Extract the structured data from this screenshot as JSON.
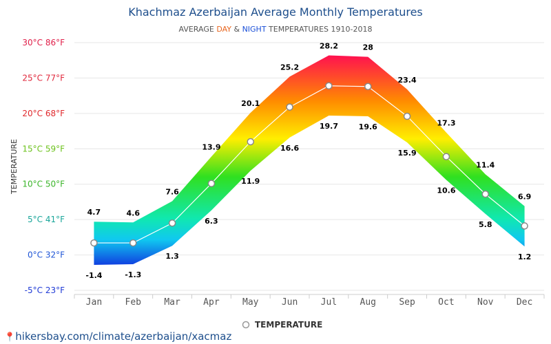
{
  "header": {
    "title": "Khachmaz Azerbaijan Average Monthly Temperatures",
    "subtitle_prefix": "AVERAGE ",
    "subtitle_day": "DAY",
    "subtitle_amp": " & ",
    "subtitle_night": "NIGHT",
    "subtitle_suffix": " TEMPERATURES 1910-2018"
  },
  "footer": {
    "link_text": "hikersbay.com/climate/azerbaijan/xacmaz"
  },
  "colors": {
    "title": "#1d4e8c",
    "day_accent": "#e8641c",
    "night_accent": "#1a4fd8"
  },
  "chart_data": {
    "type": "area",
    "title": "Khachmaz Azerbaijan Average Monthly Temperatures",
    "ylabel": "TEMPERATURE",
    "xlabel": "",
    "ylim": [
      -5,
      30
    ],
    "grid": true,
    "legend_position": "bottom",
    "categories": [
      "Jan",
      "Feb",
      "Mar",
      "Apr",
      "May",
      "Jun",
      "Jul",
      "Aug",
      "Sep",
      "Oct",
      "Nov",
      "Dec"
    ],
    "yticks": [
      {
        "value": -5,
        "label": "-5°C 23°F",
        "color": "#1f3ad6"
      },
      {
        "value": 0,
        "label": "0°C 32°F",
        "color": "#1f55d6"
      },
      {
        "value": 5,
        "label": "5°C 41°F",
        "color": "#1aa69a"
      },
      {
        "value": 10,
        "label": "10°C 50°F",
        "color": "#3bb52a"
      },
      {
        "value": 15,
        "label": "15°C 59°F",
        "color": "#6cc21c"
      },
      {
        "value": 20,
        "label": "20°C 68°F",
        "color": "#e0282c"
      },
      {
        "value": 25,
        "label": "25°C 77°F",
        "color": "#e0283c"
      },
      {
        "value": 30,
        "label": "30°C 86°F",
        "color": "#e0204a"
      }
    ],
    "series": [
      {
        "name": "DAY",
        "values": [
          4.7,
          4.6,
          7.6,
          13.9,
          20.1,
          25.2,
          28.2,
          28,
          23.4,
          17.3,
          11.4,
          6.9
        ]
      },
      {
        "name": "NIGHT",
        "values": [
          -1.4,
          -1.3,
          1.3,
          6.3,
          11.9,
          16.6,
          19.7,
          19.6,
          15.9,
          10.6,
          5.8,
          1.2
        ]
      },
      {
        "name": "TEMPERATURE",
        "values": [
          1.7,
          1.7,
          4.5,
          10.1,
          16.0,
          20.9,
          23.9,
          23.8,
          19.6,
          13.9,
          8.6,
          4.1
        ]
      }
    ],
    "day_labels": [
      "4.7",
      "4.6",
      "7.6",
      "13.9",
      "20.1",
      "25.2",
      "28.2",
      "28",
      "23.4",
      "17.3",
      "11.4",
      "6.9"
    ],
    "night_labels": [
      "-1.4",
      "-1.3",
      "1.3",
      "6.3",
      "11.9",
      "16.6",
      "19.7",
      "19.6",
      "15.9",
      "10.6",
      "5.8",
      "1.2"
    ],
    "legend": [
      "TEMPERATURE"
    ]
  }
}
